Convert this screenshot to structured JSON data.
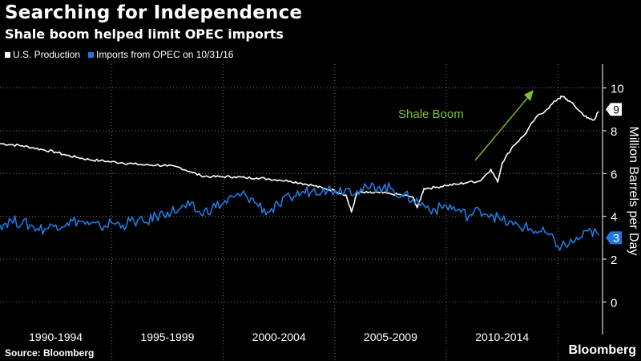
{
  "header": {
    "title": "Searching for Independence",
    "subtitle": "Shale boom helped limit OPEC imports"
  },
  "footer": {
    "source": "Source: Bloomberg",
    "brand": "Bloomberg"
  },
  "colors": {
    "background": "#000000",
    "production": "#ffffff",
    "imports": "#1f7ae0",
    "annotation": "#7fc42a",
    "grid": "#777777"
  },
  "chart_data": {
    "type": "line",
    "xlim": [
      1990,
      2017
    ],
    "ylim": [
      -1,
      11
    ],
    "yticks": [
      0,
      2,
      4,
      6,
      8,
      10
    ],
    "ylabel": "Million Barrels per Day",
    "x_categories": [
      "1990-1994",
      "1995-1999",
      "2000-2004",
      "2005-2009",
      "2010-2014"
    ],
    "legend_position": "top-left",
    "grid": "horizontal dotted",
    "series": [
      {
        "name": "U.S. Production",
        "color": "#ffffff",
        "last_value_label": "9",
        "x": [
          1990,
          1990.5,
          1991,
          1991.5,
          1992,
          1992.5,
          1993,
          1993.5,
          1994,
          1994.5,
          1995,
          1995.5,
          1996,
          1996.5,
          1997,
          1997.5,
          1998,
          1998.5,
          1999,
          1999.5,
          2000,
          2000.5,
          2001,
          2001.5,
          2002,
          2002.5,
          2003,
          2003.5,
          2004,
          2004.5,
          2005,
          2005.5,
          2005.75,
          2006,
          2006.5,
          2007,
          2007.5,
          2008,
          2008.5,
          2008.7,
          2009,
          2009.5,
          2010,
          2010.5,
          2011,
          2011.5,
          2012,
          2012.3,
          2012.5,
          2013,
          2013.5,
          2014,
          2014.5,
          2015,
          2015.2,
          2015.5,
          2016,
          2016.3,
          2016.6,
          2016.83
        ],
        "y": [
          7.4,
          7.35,
          7.3,
          7.2,
          7.1,
          7.0,
          6.85,
          6.75,
          6.65,
          6.6,
          6.55,
          6.5,
          6.45,
          6.4,
          6.4,
          6.35,
          6.3,
          6.1,
          5.9,
          5.85,
          5.85,
          5.85,
          5.8,
          5.8,
          5.75,
          5.7,
          5.65,
          5.55,
          5.45,
          5.3,
          5.2,
          5.0,
          4.2,
          5.1,
          5.1,
          5.1,
          5.05,
          5.0,
          4.9,
          4.4,
          5.3,
          5.35,
          5.45,
          5.5,
          5.6,
          5.65,
          6.2,
          5.6,
          6.5,
          7.3,
          7.8,
          8.6,
          9.0,
          9.5,
          9.6,
          9.4,
          8.9,
          8.6,
          8.5,
          8.9
        ]
      },
      {
        "name": "Imports from OPEC on 10/31/16",
        "color": "#1f7ae0",
        "last_value_label": "3",
        "x": [
          1990,
          1990.5,
          1991,
          1991.5,
          1992,
          1992.5,
          1993,
          1993.5,
          1994,
          1994.5,
          1995,
          1995.5,
          1996,
          1996.5,
          1997,
          1997.5,
          1998,
          1998.5,
          1999,
          1999.5,
          2000,
          2000.5,
          2001,
          2001.5,
          2002,
          2002.5,
          2003,
          2003.5,
          2004,
          2004.5,
          2005,
          2005.5,
          2006,
          2006.5,
          2007,
          2007.5,
          2008,
          2008.5,
          2009,
          2009.5,
          2010,
          2010.5,
          2011,
          2011.5,
          2012,
          2012.5,
          2013,
          2013.5,
          2014,
          2014.5,
          2015,
          2015.5,
          2016,
          2016.5,
          2016.83
        ],
        "y": [
          3.6,
          3.8,
          3.7,
          3.5,
          3.4,
          3.6,
          3.7,
          3.8,
          3.6,
          3.5,
          3.7,
          3.6,
          3.8,
          3.7,
          4.0,
          4.2,
          4.3,
          4.5,
          4.1,
          4.4,
          4.6,
          4.9,
          5.0,
          4.6,
          4.2,
          4.5,
          4.9,
          5.1,
          5.2,
          5.3,
          5.2,
          5.3,
          5.2,
          5.3,
          5.4,
          5.3,
          5.0,
          4.8,
          4.5,
          4.3,
          4.5,
          4.3,
          4.0,
          4.3,
          4.1,
          3.8,
          3.6,
          3.5,
          3.3,
          3.2,
          2.6,
          2.7,
          3.0,
          3.3,
          3.1
        ]
      }
    ],
    "annotations": [
      {
        "text": "Shale Boom",
        "color": "#7fc42a"
      }
    ]
  }
}
